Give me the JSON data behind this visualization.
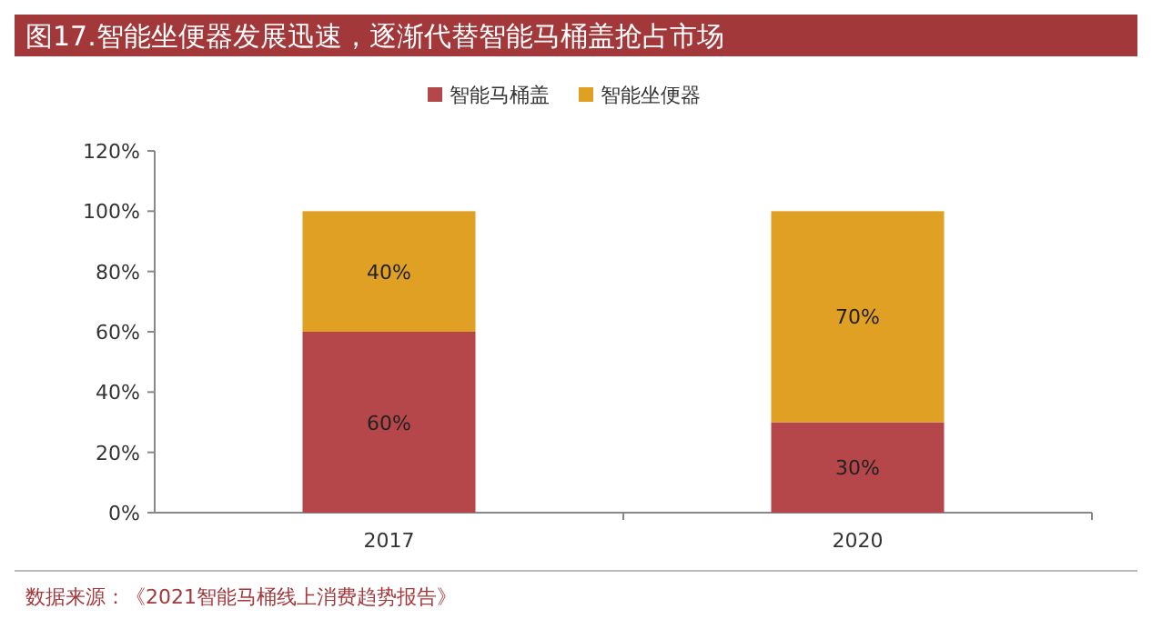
{
  "chart_data": {
    "type": "bar",
    "stacked": true,
    "title": "图17.智能坐便器发展迅速，逐渐代替智能马桶盖抢占市场",
    "categories": [
      "2017",
      "2020"
    ],
    "series": [
      {
        "name": "智能马桶盖",
        "color": "#b5474a",
        "values": [
          60,
          30
        ],
        "value_labels": [
          "60%",
          "30%"
        ]
      },
      {
        "name": "智能坐便器",
        "color": "#e0a024",
        "values": [
          40,
          70
        ],
        "value_labels": [
          "40%",
          "70%"
        ]
      }
    ],
    "ylim": [
      0,
      120
    ],
    "yticks": [
      {
        "value": 0,
        "label": "0%"
      },
      {
        "value": 20,
        "label": "20%"
      },
      {
        "value": 40,
        "label": "40%"
      },
      {
        "value": 60,
        "label": "60%"
      },
      {
        "value": 80,
        "label": "80%"
      },
      {
        "value": 100,
        "label": "100%"
      },
      {
        "value": 120,
        "label": "120%"
      }
    ],
    "legend": "top",
    "grid": false,
    "annotations": [
      "数据来源：《2021智能马桶线上消费趋势报告》"
    ]
  }
}
